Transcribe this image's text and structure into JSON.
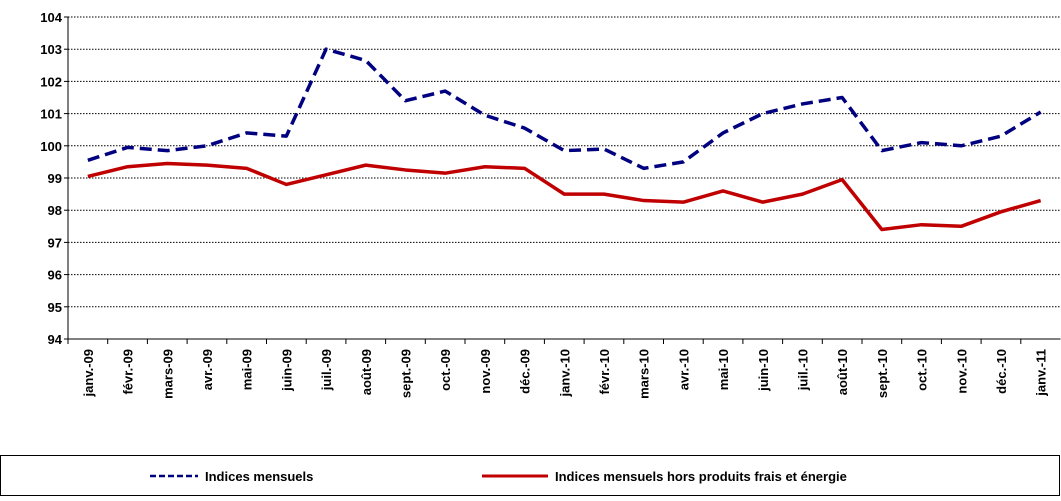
{
  "chart_data": {
    "type": "line",
    "categories": [
      "janv.-09",
      "févr.-09",
      "mars-09",
      "avr.-09",
      "mai-09",
      "juin-09",
      "juil.-09",
      "août-09",
      "sept.-09",
      "oct.-09",
      "nov.-09",
      "déc.-09",
      "janv.-10",
      "févr.-10",
      "mars-10",
      "avr.-10",
      "mai-10",
      "juin-10",
      "juil.-10",
      "août-10",
      "sept.-10",
      "oct.-10",
      "nov.-10",
      "déc.-10",
      "janv.-11"
    ],
    "series": [
      {
        "name": "Indices mensuels",
        "color": "#000080",
        "dashed": true,
        "values": [
          99.55,
          99.95,
          99.85,
          100.0,
          100.4,
          100.3,
          103.0,
          102.65,
          101.4,
          101.7,
          100.95,
          100.55,
          99.85,
          99.9,
          99.3,
          99.5,
          100.4,
          101.0,
          101.3,
          101.5,
          99.85,
          100.1,
          100.0,
          100.3,
          101.05
        ]
      },
      {
        "name": "Indices mensuels hors produits frais et énergie",
        "color": "#c00000",
        "dashed": false,
        "values": [
          99.05,
          99.35,
          99.45,
          99.4,
          99.3,
          98.8,
          99.1,
          99.4,
          99.25,
          99.15,
          99.35,
          99.3,
          98.5,
          98.5,
          98.3,
          98.25,
          98.6,
          98.25,
          98.5,
          98.95,
          97.4,
          97.55,
          97.5,
          97.95,
          98.3
        ]
      }
    ],
    "ylim": [
      94,
      104
    ],
    "yticks": [
      94,
      95,
      96,
      97,
      98,
      99,
      100,
      101,
      102,
      103,
      104
    ],
    "grid": true,
    "legend": "bottom"
  }
}
